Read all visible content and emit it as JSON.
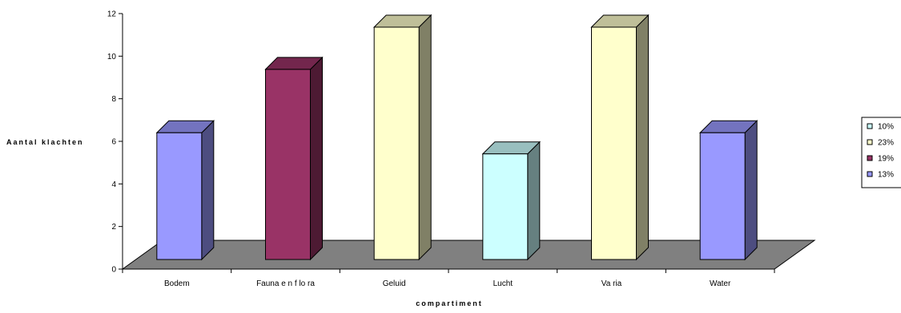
{
  "chart_data": {
    "type": "bar",
    "three_d": true,
    "title": "",
    "xlabel": "compartiment",
    "ylabel": "Aantal klachten",
    "ylim": [
      0,
      12
    ],
    "yticks": [
      0,
      2,
      4,
      6,
      8,
      10,
      12
    ],
    "categories": [
      "Bodem",
      "Fauna en flora",
      "Geluid",
      "Lucht",
      "Varia",
      "Water"
    ],
    "category_labels": [
      "Bodem",
      "Fauna e n f lo ra",
      "Geluid",
      "Lucht",
      "Va ria",
      "Water"
    ],
    "values": [
      6,
      9,
      11,
      5,
      11,
      6
    ],
    "bar_colors": [
      "#9999FF",
      "#993366",
      "#FFFFCC",
      "#CCFFFF",
      "#FFFFCC",
      "#9999FF"
    ],
    "floor_color": "#808080",
    "grid": false,
    "legend": {
      "placement": "right",
      "items": [
        {
          "label": "10%",
          "color": "#CCFFFF"
        },
        {
          "label": "23%",
          "color": "#FFFFCC"
        },
        {
          "label": "19%",
          "color": "#993366"
        },
        {
          "label": "13%",
          "color": "#9999FF"
        }
      ]
    }
  }
}
